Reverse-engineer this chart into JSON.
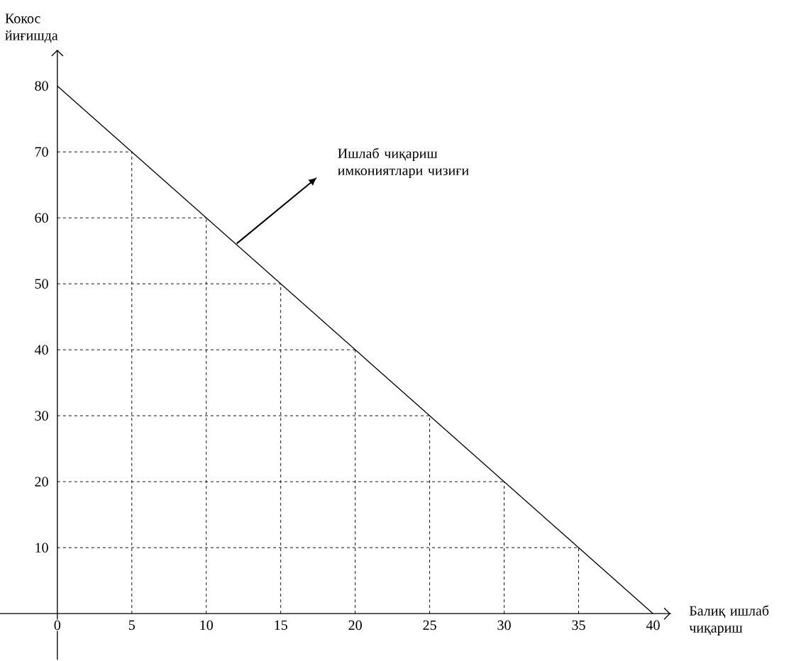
{
  "chart_data": {
    "type": "line",
    "xlabel": "Балиқ ишлаб чиқариш",
    "ylabel": "Кокос йиғишда",
    "x": [
      0,
      40
    ],
    "series": [
      {
        "color": "#000000",
        "values": [
          80,
          0
        ]
      }
    ],
    "xlim": [
      -3.85,
      41.2
    ],
    "ylim": [
      -7,
      85.5
    ],
    "xticks": [
      0,
      5,
      10,
      15,
      20,
      25,
      30,
      35,
      40
    ],
    "yticks": [
      10,
      20,
      30,
      40,
      50,
      60,
      70,
      80
    ],
    "ref_lines": [
      {
        "axis": "x",
        "value": 5,
        "line_style": "dashed"
      },
      {
        "axis": "x",
        "value": 10,
        "line_style": "dashed"
      },
      {
        "axis": "x",
        "value": 15,
        "line_style": "dashed"
      },
      {
        "axis": "x",
        "value": 20,
        "line_style": "dashed"
      },
      {
        "axis": "x",
        "value": 25,
        "line_style": "dashed"
      },
      {
        "axis": "x",
        "value": 30,
        "line_style": "dashed"
      },
      {
        "axis": "x",
        "value": 35,
        "line_style": "dashed"
      },
      {
        "axis": "y",
        "value": 10,
        "line_style": "dashed"
      },
      {
        "axis": "y",
        "value": 20,
        "line_style": "dashed"
      },
      {
        "axis": "y",
        "value": 30,
        "line_style": "dashed"
      },
      {
        "axis": "y",
        "value": 40,
        "line_style": "dashed"
      },
      {
        "axis": "y",
        "value": 50,
        "line_style": "dashed"
      },
      {
        "axis": "y",
        "value": 60,
        "line_style": "dashed"
      },
      {
        "axis": "y",
        "value": 70,
        "line_style": "dashed"
      }
    ],
    "annotations": [
      "Ишлаб чиқариш имкониятлари чизиғи"
    ],
    "grid": false,
    "marker": "none",
    "line_style": "solid"
  }
}
